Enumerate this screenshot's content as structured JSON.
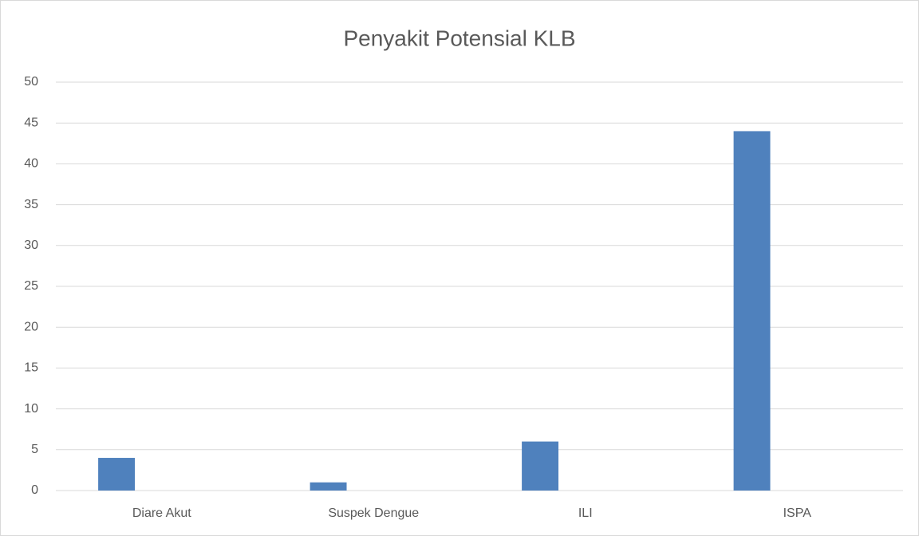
{
  "chart_data": {
    "type": "bar",
    "title": "Penyakit Potensial KLB",
    "categories": [
      "Diare Akut",
      "Suspek Dengue",
      "ILI",
      "ISPA"
    ],
    "values": [
      4,
      1,
      6,
      44
    ],
    "color": "#4f81bd",
    "ylim": [
      0,
      50
    ],
    "yticks": [
      0,
      5,
      10,
      15,
      20,
      25,
      30,
      35,
      40,
      45,
      50
    ],
    "grid": true
  }
}
